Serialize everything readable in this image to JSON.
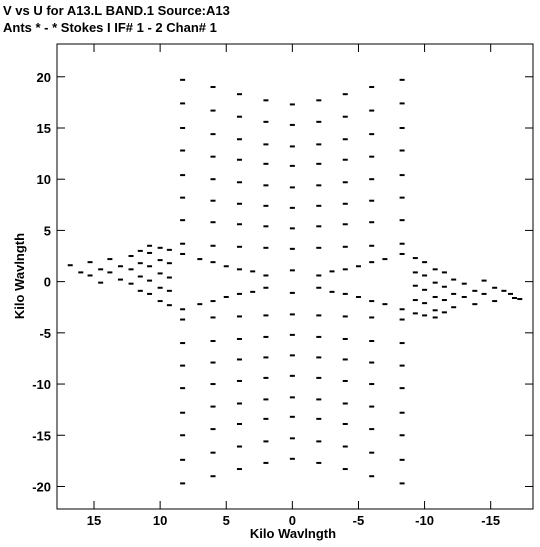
{
  "chart_data": {
    "type": "scatter",
    "title": "V vs U for A13.L BAND.1   Source:A13",
    "subtitle": "Ants * - *    Stokes I  IF# 1 - 2  Chan# 1",
    "xlabel": "Kilo Wavlngth",
    "ylabel": "Kilo Wavlngth",
    "xlim": [
      17.8,
      -18.2
    ],
    "ylim": [
      -22.2,
      23.2
    ],
    "x_reversed": true,
    "grid": false,
    "x_ticks": [
      15,
      10,
      5,
      0,
      -5,
      -10,
      -15
    ],
    "x_tick_labels": [
      "15",
      "10",
      "5",
      "0",
      "-5",
      "-10",
      "-15"
    ],
    "y_ticks": [
      20,
      15,
      10,
      5,
      0,
      -5,
      -10,
      -15,
      -20
    ],
    "y_tick_labels": [
      "20",
      "15",
      "10",
      "5",
      "0",
      "-5",
      "-10",
      "-15",
      "-20"
    ],
    "marker_color": "#000000",
    "series": [
      {
        "values": [
          {
            "x": 0.0,
            "y": 17.3
          },
          {
            "x": 0.0,
            "y": 15.3
          },
          {
            "x": 0.0,
            "y": 13.2
          },
          {
            "x": 0.0,
            "y": 11.3
          },
          {
            "x": 0.0,
            "y": 9.2
          },
          {
            "x": 0.0,
            "y": 7.2
          },
          {
            "x": 0.0,
            "y": 5.2
          },
          {
            "x": 0.0,
            "y": 3.2
          },
          {
            "x": 0.0,
            "y": 1.1
          },
          {
            "x": 0.0,
            "y": -1.1
          },
          {
            "x": 0.0,
            "y": -3.2
          },
          {
            "x": 0.0,
            "y": -5.2
          },
          {
            "x": 0.0,
            "y": -7.2
          },
          {
            "x": 0.0,
            "y": -9.2
          },
          {
            "x": 0.0,
            "y": -11.3
          },
          {
            "x": 0.0,
            "y": -13.2
          },
          {
            "x": 0.0,
            "y": -15.3
          },
          {
            "x": 0.0,
            "y": -17.3
          },
          {
            "x": 2.0,
            "y": 17.7
          },
          {
            "x": 4.0,
            "y": 18.3
          },
          {
            "x": 6.0,
            "y": 19.0
          },
          {
            "x": 8.3,
            "y": 19.7
          },
          {
            "x": -2.0,
            "y": 17.7
          },
          {
            "x": -4.0,
            "y": 18.3
          },
          {
            "x": -6.0,
            "y": 19.0
          },
          {
            "x": -8.3,
            "y": 19.7
          },
          {
            "x": 2.0,
            "y": 15.6
          },
          {
            "x": 4.0,
            "y": 16.1
          },
          {
            "x": 6.0,
            "y": 16.7
          },
          {
            "x": 8.3,
            "y": 17.4
          },
          {
            "x": -2.0,
            "y": 15.6
          },
          {
            "x": -4.0,
            "y": 16.1
          },
          {
            "x": -6.0,
            "y": 16.7
          },
          {
            "x": -8.3,
            "y": 17.4
          },
          {
            "x": 2.0,
            "y": 13.4
          },
          {
            "x": 4.0,
            "y": 13.9
          },
          {
            "x": 6.0,
            "y": 14.4
          },
          {
            "x": 8.3,
            "y": 15.0
          },
          {
            "x": -2.0,
            "y": 13.4
          },
          {
            "x": -4.0,
            "y": 13.9
          },
          {
            "x": -6.0,
            "y": 14.4
          },
          {
            "x": -8.3,
            "y": 15.0
          },
          {
            "x": 2.0,
            "y": 11.5
          },
          {
            "x": 4.0,
            "y": 11.9
          },
          {
            "x": 6.0,
            "y": 12.2
          },
          {
            "x": 8.3,
            "y": 12.8
          },
          {
            "x": -2.0,
            "y": 11.5
          },
          {
            "x": -4.0,
            "y": 11.9
          },
          {
            "x": -6.0,
            "y": 12.2
          },
          {
            "x": -8.3,
            "y": 12.8
          },
          {
            "x": 2.0,
            "y": 9.4
          },
          {
            "x": 4.0,
            "y": 9.7
          },
          {
            "x": 6.0,
            "y": 10.0
          },
          {
            "x": 8.3,
            "y": 10.4
          },
          {
            "x": -2.0,
            "y": 9.4
          },
          {
            "x": -4.0,
            "y": 9.7
          },
          {
            "x": -6.0,
            "y": 10.0
          },
          {
            "x": -8.3,
            "y": 10.4
          },
          {
            "x": 2.0,
            "y": 7.4
          },
          {
            "x": 4.0,
            "y": 7.6
          },
          {
            "x": 6.0,
            "y": 7.9
          },
          {
            "x": 8.3,
            "y": 8.2
          },
          {
            "x": -2.0,
            "y": 7.4
          },
          {
            "x": -4.0,
            "y": 7.6
          },
          {
            "x": -6.0,
            "y": 7.9
          },
          {
            "x": -8.3,
            "y": 8.2
          },
          {
            "x": 2.0,
            "y": 5.4
          },
          {
            "x": 4.0,
            "y": 5.6
          },
          {
            "x": 6.0,
            "y": 5.8
          },
          {
            "x": 8.3,
            "y": 6.0
          },
          {
            "x": -2.0,
            "y": 5.4
          },
          {
            "x": -4.0,
            "y": 5.6
          },
          {
            "x": -6.0,
            "y": 5.8
          },
          {
            "x": -8.3,
            "y": 6.0
          },
          {
            "x": 2.0,
            "y": 3.3
          },
          {
            "x": 4.0,
            "y": 3.4
          },
          {
            "x": 6.0,
            "y": 3.5
          },
          {
            "x": 8.3,
            "y": 3.7
          },
          {
            "x": -2.0,
            "y": 3.3
          },
          {
            "x": -4.0,
            "y": 3.4
          },
          {
            "x": -6.0,
            "y": 3.5
          },
          {
            "x": -8.3,
            "y": 3.7
          },
          {
            "x": 2.0,
            "y": -17.7
          },
          {
            "x": 4.0,
            "y": -18.3
          },
          {
            "x": 6.0,
            "y": -19.0
          },
          {
            "x": 8.3,
            "y": -19.7
          },
          {
            "x": -2.0,
            "y": -17.7
          },
          {
            "x": -4.0,
            "y": -18.3
          },
          {
            "x": -6.0,
            "y": -19.0
          },
          {
            "x": -8.3,
            "y": -19.7
          },
          {
            "x": 2.0,
            "y": -15.6
          },
          {
            "x": 4.0,
            "y": -16.1
          },
          {
            "x": 6.0,
            "y": -16.7
          },
          {
            "x": 8.3,
            "y": -17.4
          },
          {
            "x": -2.0,
            "y": -15.6
          },
          {
            "x": -4.0,
            "y": -16.1
          },
          {
            "x": -6.0,
            "y": -16.7
          },
          {
            "x": -8.3,
            "y": -17.4
          },
          {
            "x": 2.0,
            "y": -13.4
          },
          {
            "x": 4.0,
            "y": -13.9
          },
          {
            "x": 6.0,
            "y": -14.4
          },
          {
            "x": 8.3,
            "y": -15.0
          },
          {
            "x": -2.0,
            "y": -13.4
          },
          {
            "x": -4.0,
            "y": -13.9
          },
          {
            "x": -6.0,
            "y": -14.4
          },
          {
            "x": -8.3,
            "y": -15.0
          },
          {
            "x": 2.0,
            "y": -11.5
          },
          {
            "x": 4.0,
            "y": -11.9
          },
          {
            "x": 6.0,
            "y": -12.2
          },
          {
            "x": 8.3,
            "y": -12.8
          },
          {
            "x": -2.0,
            "y": -11.5
          },
          {
            "x": -4.0,
            "y": -11.9
          },
          {
            "x": -6.0,
            "y": -12.2
          },
          {
            "x": -8.3,
            "y": -12.8
          },
          {
            "x": 2.0,
            "y": -9.4
          },
          {
            "x": 4.0,
            "y": -9.7
          },
          {
            "x": 6.0,
            "y": -10.0
          },
          {
            "x": 8.3,
            "y": -10.4
          },
          {
            "x": -2.0,
            "y": -9.4
          },
          {
            "x": -4.0,
            "y": -9.7
          },
          {
            "x": -6.0,
            "y": -10.0
          },
          {
            "x": -8.3,
            "y": -10.4
          },
          {
            "x": 2.0,
            "y": -7.4
          },
          {
            "x": 4.0,
            "y": -7.6
          },
          {
            "x": 6.0,
            "y": -7.9
          },
          {
            "x": 8.3,
            "y": -8.2
          },
          {
            "x": -2.0,
            "y": -7.4
          },
          {
            "x": -4.0,
            "y": -7.6
          },
          {
            "x": -6.0,
            "y": -7.9
          },
          {
            "x": -8.3,
            "y": -8.2
          },
          {
            "x": 2.0,
            "y": -5.4
          },
          {
            "x": 4.0,
            "y": -5.6
          },
          {
            "x": 6.0,
            "y": -5.8
          },
          {
            "x": 8.3,
            "y": -6.0
          },
          {
            "x": -2.0,
            "y": -5.4
          },
          {
            "x": -4.0,
            "y": -5.6
          },
          {
            "x": -6.0,
            "y": -5.8
          },
          {
            "x": -8.3,
            "y": -6.0
          },
          {
            "x": 2.0,
            "y": -3.3
          },
          {
            "x": 4.0,
            "y": -3.4
          },
          {
            "x": 6.0,
            "y": -3.5
          },
          {
            "x": 8.3,
            "y": -3.7
          },
          {
            "x": -2.0,
            "y": -3.3
          },
          {
            "x": -4.0,
            "y": -3.4
          },
          {
            "x": -6.0,
            "y": -3.5
          },
          {
            "x": -8.3,
            "y": -3.7
          },
          {
            "x": 2.0,
            "y": 0.6
          },
          {
            "x": 4.0,
            "y": 1.2
          },
          {
            "x": 6.0,
            "y": 1.9
          },
          {
            "x": 8.3,
            "y": 2.7
          },
          {
            "x": -2.0,
            "y": -0.6
          },
          {
            "x": -4.0,
            "y": -1.2
          },
          {
            "x": -6.0,
            "y": -1.9
          },
          {
            "x": -8.3,
            "y": -2.7
          },
          {
            "x": 2.0,
            "y": -0.6
          },
          {
            "x": 4.0,
            "y": -1.2
          },
          {
            "x": 6.0,
            "y": -1.9
          },
          {
            "x": 8.3,
            "y": -2.7
          },
          {
            "x": -2.0,
            "y": 0.6
          },
          {
            "x": -4.0,
            "y": 1.2
          },
          {
            "x": -6.0,
            "y": 1.9
          },
          {
            "x": -8.3,
            "y": 2.7
          },
          {
            "x": 3.0,
            "y": 1.0
          },
          {
            "x": 5.0,
            "y": 1.5
          },
          {
            "x": 7.0,
            "y": 2.2
          },
          {
            "x": -3.0,
            "y": -1.0
          },
          {
            "x": -5.0,
            "y": -1.5
          },
          {
            "x": -7.0,
            "y": -2.2
          },
          {
            "x": 3.0,
            "y": -1.0
          },
          {
            "x": 5.0,
            "y": -1.5
          },
          {
            "x": 7.0,
            "y": -2.2
          },
          {
            "x": -3.0,
            "y": 1.0
          },
          {
            "x": -5.0,
            "y": 1.5
          },
          {
            "x": -7.0,
            "y": 2.2
          },
          {
            "x": 16.8,
            "y": 1.6
          },
          {
            "x": 16.0,
            "y": 0.9
          },
          {
            "x": 15.3,
            "y": 1.9
          },
          {
            "x": 14.5,
            "y": 1.2
          },
          {
            "x": 13.8,
            "y": 2.2
          },
          {
            "x": 13.0,
            "y": 1.5
          },
          {
            "x": 12.2,
            "y": 2.5
          },
          {
            "x": 11.5,
            "y": 1.8
          },
          {
            "x": 10.8,
            "y": 2.8
          },
          {
            "x": 10.0,
            "y": 2.1
          },
          {
            "x": 9.3,
            "y": 3.1
          },
          {
            "x": 15.3,
            "y": 0.6
          },
          {
            "x": 14.5,
            "y": -0.1
          },
          {
            "x": 13.8,
            "y": 0.9
          },
          {
            "x": 13.0,
            "y": 0.2
          },
          {
            "x": 12.2,
            "y": 1.2
          },
          {
            "x": 11.5,
            "y": 0.5
          },
          {
            "x": 10.8,
            "y": 1.5
          },
          {
            "x": 10.0,
            "y": 0.8
          },
          {
            "x": 9.3,
            "y": 1.8
          },
          {
            "x": 12.2,
            "y": -0.2
          },
          {
            "x": 11.5,
            "y": -0.9
          },
          {
            "x": 10.8,
            "y": 0.1
          },
          {
            "x": 10.0,
            "y": -0.6
          },
          {
            "x": 9.3,
            "y": 0.4
          },
          {
            "x": 10.8,
            "y": -1.2
          },
          {
            "x": 10.0,
            "y": -1.9
          },
          {
            "x": 9.3,
            "y": -0.9
          },
          {
            "x": 9.3,
            "y": -2.3
          },
          {
            "x": 11.5,
            "y": 3.0
          },
          {
            "x": 10.8,
            "y": 3.5
          },
          {
            "x": 10.0,
            "y": 3.3
          },
          {
            "x": -16.8,
            "y": -1.6
          },
          {
            "x": -16.0,
            "y": -0.9
          },
          {
            "x": -15.3,
            "y": -1.9
          },
          {
            "x": -14.5,
            "y": -1.2
          },
          {
            "x": -13.8,
            "y": -2.2
          },
          {
            "x": -13.0,
            "y": -1.5
          },
          {
            "x": -12.2,
            "y": -2.5
          },
          {
            "x": -11.5,
            "y": -1.8
          },
          {
            "x": -10.8,
            "y": -2.8
          },
          {
            "x": -10.0,
            "y": -2.1
          },
          {
            "x": -9.3,
            "y": -3.1
          },
          {
            "x": -15.3,
            "y": -0.6
          },
          {
            "x": -14.5,
            "y": 0.1
          },
          {
            "x": -13.8,
            "y": -0.9
          },
          {
            "x": -13.0,
            "y": -0.2
          },
          {
            "x": -12.2,
            "y": -1.2
          },
          {
            "x": -11.5,
            "y": -0.5
          },
          {
            "x": -10.8,
            "y": -1.5
          },
          {
            "x": -10.0,
            "y": -0.8
          },
          {
            "x": -9.3,
            "y": -1.8
          },
          {
            "x": -12.2,
            "y": 0.2
          },
          {
            "x": -11.5,
            "y": 0.9
          },
          {
            "x": -10.8,
            "y": -0.1
          },
          {
            "x": -10.0,
            "y": 0.6
          },
          {
            "x": -9.3,
            "y": -0.4
          },
          {
            "x": -10.8,
            "y": 1.2
          },
          {
            "x": -10.0,
            "y": 1.9
          },
          {
            "x": -9.3,
            "y": 0.9
          },
          {
            "x": -9.3,
            "y": 2.3
          },
          {
            "x": -11.5,
            "y": -3.0
          },
          {
            "x": -10.8,
            "y": -3.5
          },
          {
            "x": -10.0,
            "y": -3.3
          },
          {
            "x": -17.2,
            "y": -1.7
          },
          {
            "x": -16.5,
            "y": -1.2
          }
        ]
      }
    ]
  }
}
